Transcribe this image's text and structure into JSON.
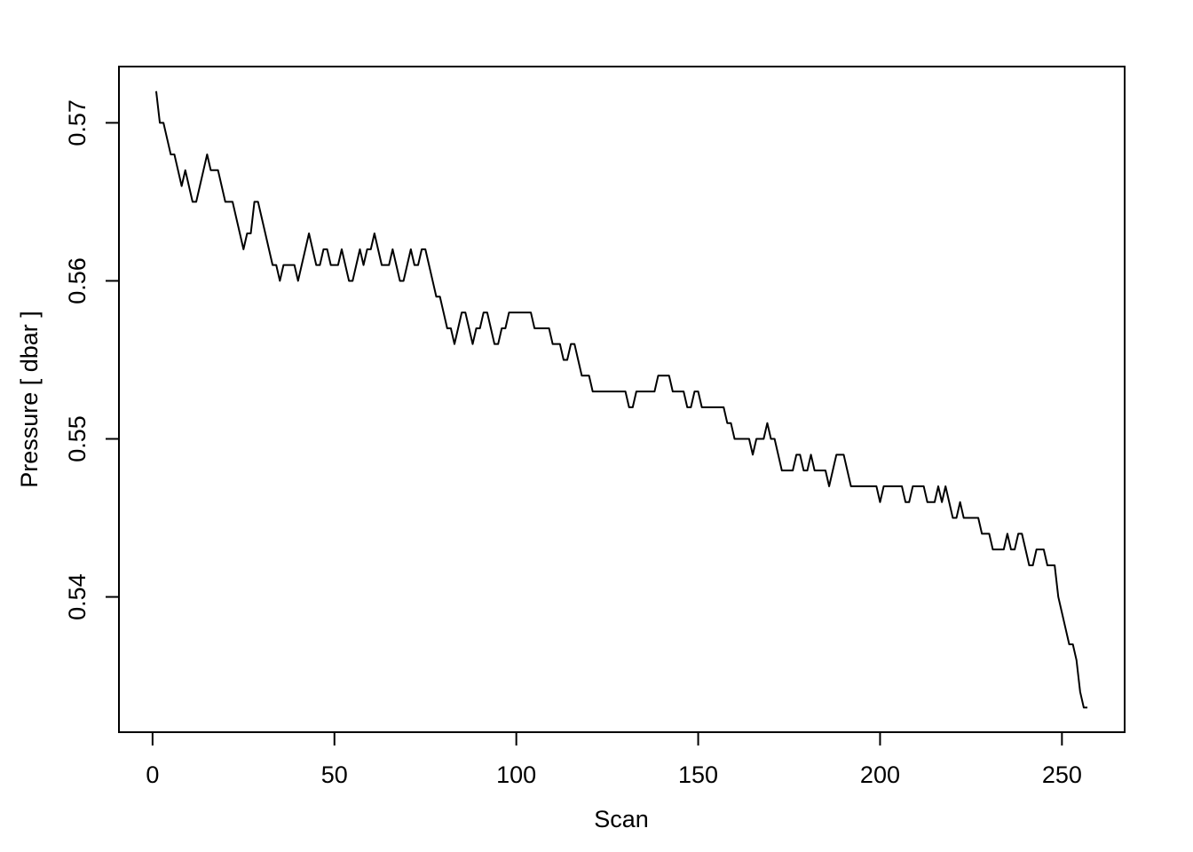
{
  "chart_data": {
    "type": "line",
    "xlabel": "Scan",
    "ylabel": "Pressure [ dbar ]",
    "x": [
      1,
      2,
      3,
      4,
      5,
      6,
      7,
      8,
      9,
      10,
      11,
      12,
      13,
      14,
      15,
      16,
      17,
      18,
      19,
      20,
      21,
      22,
      23,
      24,
      25,
      26,
      27,
      28,
      29,
      30,
      31,
      32,
      33,
      34,
      35,
      36,
      37,
      38,
      39,
      40,
      41,
      42,
      43,
      44,
      45,
      46,
      47,
      48,
      49,
      50,
      51,
      52,
      53,
      54,
      55,
      56,
      57,
      58,
      59,
      60,
      61,
      62,
      63,
      64,
      65,
      66,
      67,
      68,
      69,
      70,
      71,
      72,
      73,
      74,
      75,
      76,
      77,
      78,
      79,
      80,
      81,
      82,
      83,
      84,
      85,
      86,
      87,
      88,
      89,
      90,
      91,
      92,
      93,
      94,
      95,
      96,
      97,
      98,
      99,
      100,
      101,
      102,
      103,
      104,
      105,
      106,
      107,
      108,
      109,
      110,
      111,
      112,
      113,
      114,
      115,
      116,
      117,
      118,
      119,
      120,
      121,
      122,
      123,
      124,
      125,
      126,
      127,
      128,
      129,
      130,
      131,
      132,
      133,
      134,
      135,
      136,
      137,
      138,
      139,
      140,
      141,
      142,
      143,
      144,
      145,
      146,
      147,
      148,
      149,
      150,
      151,
      152,
      153,
      154,
      155,
      156,
      157,
      158,
      159,
      160,
      161,
      162,
      163,
      164,
      165,
      166,
      167,
      168,
      169,
      170,
      171,
      172,
      173,
      174,
      175,
      176,
      177,
      178,
      179,
      180,
      181,
      182,
      183,
      184,
      185,
      186,
      187,
      188,
      189,
      190,
      191,
      192,
      193,
      194,
      195,
      196,
      197,
      198,
      199,
      200,
      201,
      202,
      203,
      204,
      205,
      206,
      207,
      208,
      209,
      210,
      211,
      212,
      213,
      214,
      215,
      216,
      217,
      218,
      219,
      220,
      221,
      222,
      223,
      224,
      225,
      226,
      227,
      228,
      229,
      230,
      231,
      232,
      233,
      234,
      235,
      236,
      237,
      238,
      239,
      240,
      241,
      242,
      243,
      244,
      245,
      246,
      247,
      248,
      249,
      250,
      251,
      252,
      253,
      254,
      255,
      256,
      257
    ],
    "series": [
      {
        "color": "#000000",
        "values": [
          0.572,
          0.57,
          0.57,
          0.569,
          0.568,
          0.568,
          0.567,
          0.566,
          0.567,
          0.566,
          0.565,
          0.565,
          0.566,
          0.567,
          0.568,
          0.567,
          0.567,
          0.567,
          0.566,
          0.565,
          0.565,
          0.565,
          0.564,
          0.563,
          0.562,
          0.563,
          0.563,
          0.565,
          0.565,
          0.564,
          0.563,
          0.562,
          0.561,
          0.561,
          0.56,
          0.561,
          0.561,
          0.561,
          0.561,
          0.56,
          0.561,
          0.562,
          0.563,
          0.562,
          0.561,
          0.561,
          0.562,
          0.562,
          0.561,
          0.561,
          0.561,
          0.562,
          0.561,
          0.56,
          0.56,
          0.561,
          0.562,
          0.561,
          0.562,
          0.562,
          0.563,
          0.562,
          0.561,
          0.561,
          0.561,
          0.562,
          0.561,
          0.56,
          0.56,
          0.561,
          0.562,
          0.561,
          0.561,
          0.562,
          0.562,
          0.561,
          0.56,
          0.559,
          0.559,
          0.558,
          0.557,
          0.557,
          0.556,
          0.557,
          0.558,
          0.558,
          0.557,
          0.556,
          0.557,
          0.557,
          0.558,
          0.558,
          0.557,
          0.556,
          0.556,
          0.557,
          0.557,
          0.558,
          0.558,
          0.558,
          0.558,
          0.558,
          0.558,
          0.558,
          0.557,
          0.557,
          0.557,
          0.557,
          0.557,
          0.556,
          0.556,
          0.556,
          0.555,
          0.555,
          0.556,
          0.556,
          0.555,
          0.554,
          0.554,
          0.554,
          0.553,
          0.553,
          0.553,
          0.553,
          0.553,
          0.553,
          0.553,
          0.553,
          0.553,
          0.553,
          0.552,
          0.552,
          0.553,
          0.553,
          0.553,
          0.553,
          0.553,
          0.553,
          0.554,
          0.554,
          0.554,
          0.554,
          0.553,
          0.553,
          0.553,
          0.553,
          0.552,
          0.552,
          0.553,
          0.553,
          0.552,
          0.552,
          0.552,
          0.552,
          0.552,
          0.552,
          0.552,
          0.551,
          0.551,
          0.55,
          0.55,
          0.55,
          0.55,
          0.55,
          0.549,
          0.55,
          0.55,
          0.55,
          0.551,
          0.55,
          0.55,
          0.549,
          0.548,
          0.548,
          0.548,
          0.548,
          0.549,
          0.549,
          0.548,
          0.548,
          0.549,
          0.548,
          0.548,
          0.548,
          0.548,
          0.547,
          0.548,
          0.549,
          0.549,
          0.549,
          0.548,
          0.547,
          0.547,
          0.547,
          0.547,
          0.547,
          0.547,
          0.547,
          0.547,
          0.546,
          0.547,
          0.547,
          0.547,
          0.547,
          0.547,
          0.547,
          0.546,
          0.546,
          0.547,
          0.547,
          0.547,
          0.547,
          0.546,
          0.546,
          0.546,
          0.547,
          0.546,
          0.547,
          0.546,
          0.545,
          0.545,
          0.546,
          0.545,
          0.545,
          0.545,
          0.545,
          0.545,
          0.544,
          0.544,
          0.544,
          0.543,
          0.543,
          0.543,
          0.543,
          0.544,
          0.543,
          0.543,
          0.544,
          0.544,
          0.543,
          0.542,
          0.542,
          0.543,
          0.543,
          0.543,
          0.542,
          0.542,
          0.542,
          0.54,
          0.539,
          0.538,
          0.537,
          0.537,
          0.536,
          0.534,
          0.533,
          0.533
        ]
      }
    ],
    "xlim": [
      -9.24,
      267.24
    ],
    "xticks": [
      0,
      50,
      100,
      150,
      200,
      250
    ],
    "ylim": [
      0.53144,
      0.57356
    ],
    "yticks": [
      0.54,
      0.55,
      0.56,
      0.57
    ]
  }
}
